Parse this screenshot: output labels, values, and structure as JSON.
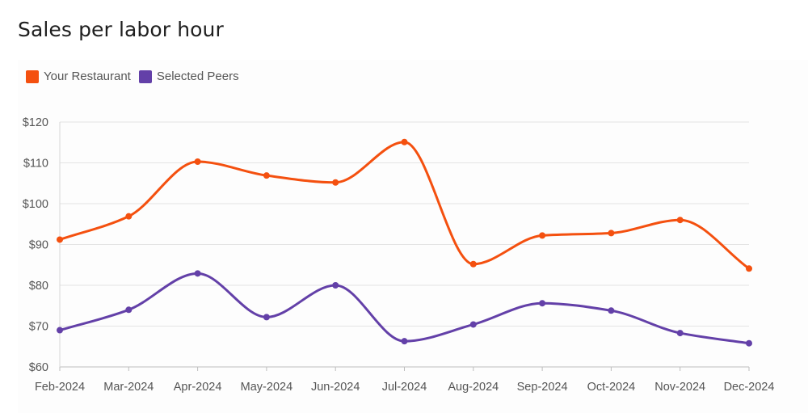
{
  "title": "Sales per labor hour",
  "chart_data": {
    "type": "line",
    "title": "Sales per labor hour",
    "categories": [
      "Feb-2024",
      "Mar-2024",
      "Apr-2024",
      "May-2024",
      "Jun-2024",
      "Jul-2024",
      "Aug-2024",
      "Sep-2024",
      "Oct-2024",
      "Nov-2024",
      "Dec-2024"
    ],
    "series": [
      {
        "name": "Your Restaurant",
        "color": "#f4500f",
        "values": [
          91.2,
          96.9,
          110.3,
          106.9,
          105.2,
          115.1,
          85.2,
          92.2,
          92.8,
          96.0,
          84.1
        ]
      },
      {
        "name": "Selected Peers",
        "color": "#6340a8",
        "values": [
          69.0,
          74.0,
          82.9,
          72.2,
          80.0,
          66.3,
          70.4,
          75.6,
          73.8,
          68.3,
          65.8
        ]
      }
    ],
    "ylim": [
      60,
      120
    ],
    "yticks": [
      60,
      70,
      80,
      90,
      100,
      110,
      120
    ],
    "y_tick_labels": [
      "$60",
      "$70",
      "$80",
      "$90",
      "$100",
      "$110",
      "$120"
    ],
    "xlabel": "",
    "ylabel": "",
    "grid": true,
    "legend_position": "top-left",
    "line_style": "smooth"
  }
}
